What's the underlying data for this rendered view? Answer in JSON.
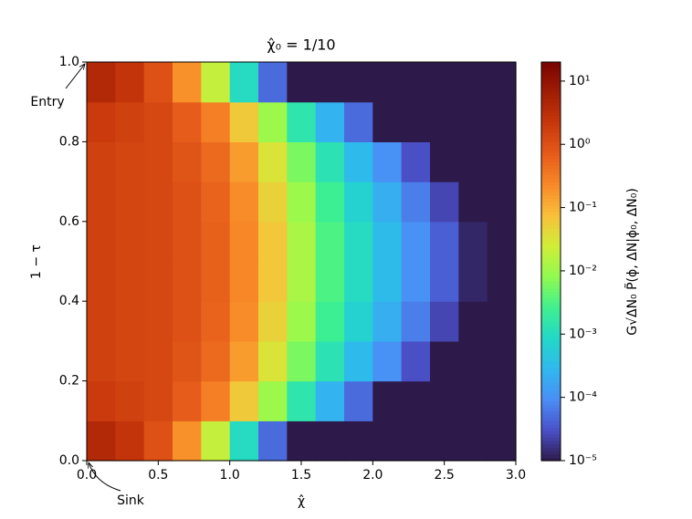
{
  "chart_data": {
    "type": "heatmap",
    "title": "χ̂₀ = 1/10",
    "x_label": "χ̂",
    "y_label": "1 − τ",
    "colorbar_label": "G√ΔN₀ P̃(ϕ, ΔN|ϕ₀, ΔN₀)",
    "annotations": [
      {
        "text": "Entry"
      },
      {
        "text": "Sink"
      }
    ],
    "xlim": [
      0,
      3
    ],
    "ylim": [
      0,
      1
    ],
    "xticks": [
      {
        "value": 0,
        "label": "0.0"
      },
      0.5,
      {
        "value": 1,
        "label": "1.0"
      },
      1.5,
      {
        "value": 2,
        "label": "2.0"
      },
      2.5,
      {
        "value": 3,
        "label": "3.0"
      }
    ],
    "yticks": [
      {
        "value": 0,
        "label": "0.0"
      },
      0.2,
      0.4,
      0.6,
      0.8,
      {
        "value": 1,
        "label": "1.0"
      }
    ],
    "clim": [
      1e-05,
      20
    ],
    "clog": true,
    "cticks": [
      {
        "value": 1e-05,
        "label": "10⁻⁵"
      },
      {
        "value": 0.0001,
        "label": "10⁻⁴"
      },
      {
        "value": 0.001,
        "label": "10⁻³"
      },
      {
        "value": 0.01,
        "label": "10⁻²"
      },
      {
        "value": 0.1,
        "label": "10⁻¹"
      },
      {
        "value": 1,
        "label": "10⁰"
      },
      {
        "value": 10,
        "label": "10¹"
      }
    ],
    "colormap": [
      "#2d1a4a",
      "#4a50c8",
      "#4a8ef5",
      "#30b8ee",
      "#22d8c8",
      "#3ff090",
      "#90fa50",
      "#d0ee38",
      "#f8c03a",
      "#f88a28",
      "#e65c1a",
      "#c8380c",
      "#a01e04",
      "#7a0403"
    ],
    "xbins": [
      0,
      0.2,
      0.4,
      0.6,
      0.8,
      1.0,
      1.2,
      1.4,
      1.6,
      1.8,
      2.0,
      2.2,
      2.4,
      2.6,
      2.8,
      3.0
    ],
    "ybins": [
      0,
      0.1,
      0.2,
      0.3,
      0.4,
      0.5,
      0.6,
      0.7,
      0.8,
      0.9,
      1.0
    ],
    "z": [
      [
        4,
        2.5,
        1,
        0.2,
        0.02,
        0.001,
        5e-05,
        1e-05,
        1e-05,
        1e-05,
        1e-05,
        1e-05,
        1e-05,
        1e-05,
        1e-05
      ],
      [
        2,
        1.6,
        1.3,
        0.7,
        0.3,
        0.06,
        0.01,
        0.0015,
        0.00025,
        5e-05,
        1e-05,
        1e-05,
        1e-05,
        1e-05,
        1e-05
      ],
      [
        1.6,
        1.4,
        1.3,
        0.9,
        0.5,
        0.16,
        0.032,
        0.006,
        0.0013,
        0.0003,
        0.0001,
        3e-05,
        1e-05,
        1e-05,
        1e-05
      ],
      [
        1.6,
        1.4,
        1.3,
        1,
        0.6,
        0.22,
        0.05,
        0.01,
        0.0025,
        0.0007,
        0.00022,
        7e-05,
        2.5e-05,
        1e-05,
        1e-05
      ],
      [
        1.6,
        1.4,
        1.3,
        1,
        0.63,
        0.25,
        0.063,
        0.013,
        0.0032,
        0.001,
        0.00032,
        0.0001,
        4e-05,
        1.3e-05,
        1e-05
      ],
      [
        1.6,
        1.4,
        1.3,
        1,
        0.63,
        0.25,
        0.063,
        0.013,
        0.0032,
        0.001,
        0.00032,
        0.0001,
        4e-05,
        1.3e-05,
        1e-05
      ],
      [
        1.6,
        1.4,
        1.3,
        1,
        0.6,
        0.22,
        0.05,
        0.01,
        0.0025,
        0.0007,
        0.00022,
        7e-05,
        2.5e-05,
        1e-05,
        1e-05
      ],
      [
        1.6,
        1.4,
        1.3,
        0.9,
        0.5,
        0.16,
        0.032,
        0.006,
        0.0013,
        0.0003,
        0.0001,
        3e-05,
        1e-05,
        1e-05,
        1e-05
      ],
      [
        2,
        1.6,
        1.3,
        0.7,
        0.3,
        0.06,
        0.01,
        0.0015,
        0.00025,
        5e-05,
        1e-05,
        1e-05,
        1e-05,
        1e-05,
        1e-05
      ],
      [
        4,
        2.5,
        1,
        0.2,
        0.02,
        0.001,
        5e-05,
        1e-05,
        1e-05,
        1e-05,
        1e-05,
        1e-05,
        1e-05,
        1e-05,
        1e-05
      ]
    ]
  }
}
